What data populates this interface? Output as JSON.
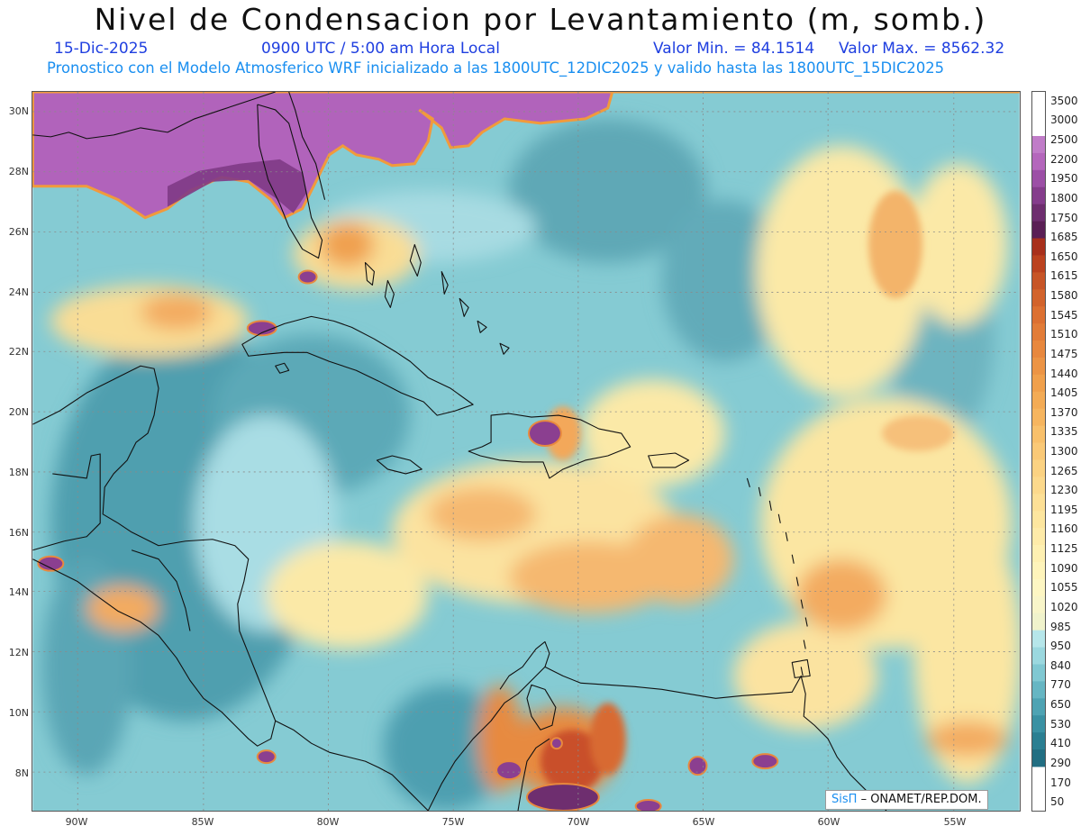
{
  "header": {
    "title": "Nivel de Condensacion por Levantamiento (m, somb.)",
    "date": "15-Dic-2025",
    "time": "0900 UTC / 5:00 am Hora Local",
    "value_min": "Valor Min. = 84.1514",
    "value_max": "Valor Max. = 8562.32",
    "description": "Pronostico con el Modelo Atmosferico WRF inicializado a las 1800UTC_12DIC2025 y valido hasta las  1800UTC_15DIC2025"
  },
  "axes": {
    "lat_labels": [
      "30N",
      "28N",
      "26N",
      "24N",
      "22N",
      "20N",
      "18N",
      "16N",
      "14N",
      "12N",
      "10N",
      "8N"
    ],
    "lon_labels": [
      "90W",
      "85W",
      "80W",
      "75W",
      "70W",
      "65W",
      "60W",
      "55W"
    ]
  },
  "legend": {
    "levels": [
      "3500",
      "3000",
      "2500",
      "2200",
      "1950",
      "1800",
      "1750",
      "1685",
      "1650",
      "1615",
      "1580",
      "1545",
      "1510",
      "1475",
      "1440",
      "1405",
      "1370",
      "1335",
      "1300",
      "1265",
      "1230",
      "1195",
      "1160",
      "1125",
      "1090",
      "1055",
      "1020",
      "985",
      "950",
      "840",
      "770",
      "650",
      "530",
      "410",
      "290",
      "170",
      "50"
    ],
    "colors": [
      "#c07cc8",
      "#b466bc",
      "#9c4fa6",
      "#853d8c",
      "#6e2e6f",
      "#5a1f55",
      "#a8301c",
      "#bb421f",
      "#c75527",
      "#d2632c",
      "#dc7032",
      "#e27c38",
      "#e8883e",
      "#ec9445",
      "#f0a04c",
      "#f3ab55",
      "#f6b55f",
      "#f8c06b",
      "#fac977",
      "#fbd282",
      "#fcd98c",
      "#fde096",
      "#fde69f",
      "#feeba9",
      "#fef0b2",
      "#fef4bb",
      "#fdf6c3",
      "#f8f5c9",
      "#f0f3cc",
      "#b6e6ea",
      "#9bd8df",
      "#80c8d2",
      "#66b6c3",
      "#4ea3b3",
      "#3a91a3",
      "#2b7f92",
      "#216e82"
    ]
  },
  "credit": {
    "brand": "SisΠ",
    "text": "– ONAMET/REP.DOM."
  }
}
